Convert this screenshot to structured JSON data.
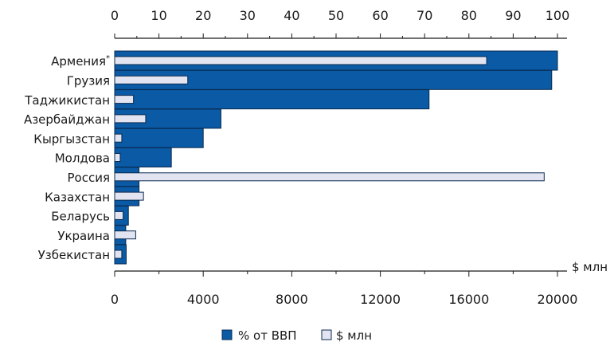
{
  "chart_data": {
    "type": "bar",
    "orientation": "horizontal",
    "categories": [
      "Армения*",
      "Грузия",
      "Таджикистан",
      "Азербайджан",
      "Кыргызстан",
      "Молдова",
      "Россия",
      "Казахстан",
      "Беларусь",
      "Украина",
      "Узбекистан"
    ],
    "series": [
      {
        "name": "% от ВВП",
        "axis": "top",
        "color": "#0a5aa5",
        "values": [
          100,
          98.7,
          71,
          24,
          20,
          12.8,
          5.5,
          5.5,
          3.1,
          2.5,
          2.6
        ]
      },
      {
        "name": "$ млн",
        "axis": "bottom",
        "color": "#e2e5f1",
        "values": [
          16800,
          3300,
          850,
          1400,
          320,
          250,
          19400,
          1300,
          380,
          950,
          320
        ]
      }
    ],
    "top_axis": {
      "min": 0,
      "max": 100,
      "ticks": [
        "0",
        "10",
        "20",
        "30",
        "40",
        "50",
        "60",
        "70",
        "80",
        "90",
        "100"
      ]
    },
    "bottom_axis": {
      "min": 0,
      "max": 20000,
      "ticks": [
        "0",
        "4000",
        "8000",
        "12000",
        "16000",
        "20000"
      ],
      "unit_label": "$ млн"
    },
    "legend": {
      "position": "bottom-center",
      "items": [
        "% от ВВП",
        "$ млн"
      ]
    },
    "grid": false
  }
}
